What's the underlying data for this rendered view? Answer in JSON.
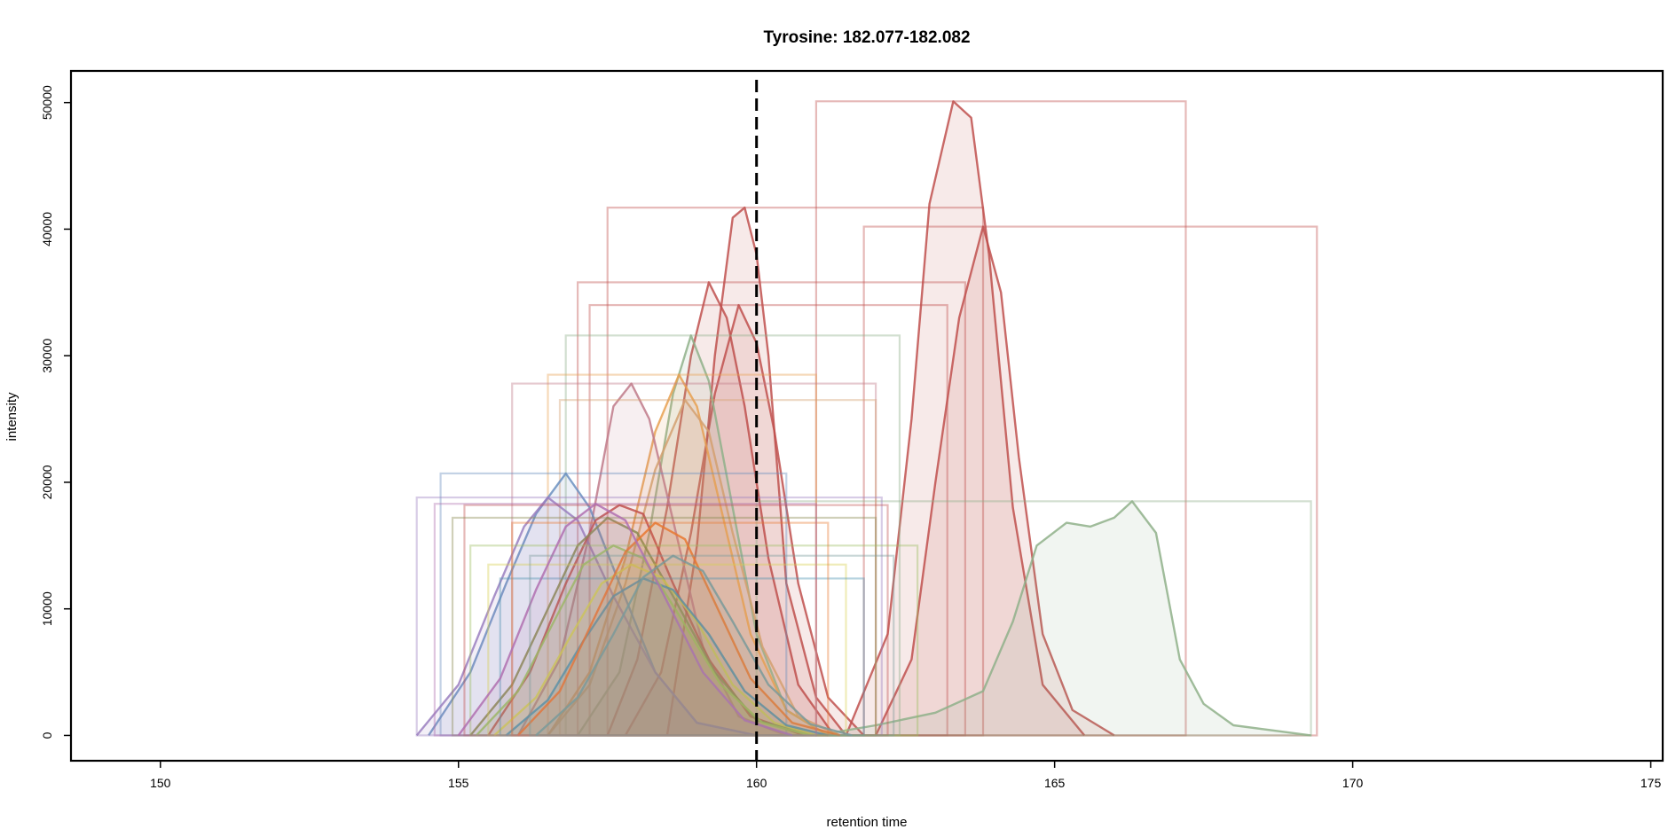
{
  "chart_data": {
    "type": "line",
    "title": "Tyrosine: 182.077-182.082",
    "xlabel": "retention time",
    "ylabel": "intensity",
    "xlim": [
      148.5,
      175.2
    ],
    "ylim": [
      -2000,
      52500
    ],
    "xticks": [
      "150",
      "155",
      "160",
      "165",
      "170",
      "175"
    ],
    "yticks": [
      "0",
      "10000",
      "20000",
      "30000",
      "40000",
      "50000"
    ],
    "grid": false,
    "legend": "none",
    "reference_line": {
      "x": 160.0,
      "style": "dashed"
    },
    "series": [
      {
        "color": "#c0504d",
        "x": [
          158.5,
          159.0,
          159.3,
          159.6,
          159.8,
          160.0,
          160.2,
          160.5,
          161.0,
          161.5
        ],
        "y": [
          0,
          15000,
          30000,
          40900,
          41700,
          38000,
          30000,
          12000,
          3000,
          0
        ],
        "box": {
          "x0": 157.5,
          "x1": 163.8,
          "top": 41700
        }
      },
      {
        "color": "#c0504d",
        "x": [
          161.5,
          162.2,
          162.6,
          162.9,
          163.3,
          163.6,
          163.9,
          164.3,
          164.8,
          165.5
        ],
        "y": [
          0,
          8000,
          25000,
          42000,
          50100,
          48800,
          38000,
          18000,
          4000,
          0
        ],
        "box": {
          "x0": 161.0,
          "x1": 167.2,
          "top": 50100
        }
      },
      {
        "color": "#c0504d",
        "x": [
          162.0,
          162.6,
          163.0,
          163.4,
          163.8,
          164.1,
          164.4,
          164.8,
          165.3,
          166.0
        ],
        "y": [
          0,
          6000,
          20000,
          33000,
          40200,
          35000,
          22000,
          8000,
          2000,
          0
        ],
        "box": {
          "x0": 161.8,
          "x1": 169.4,
          "top": 40200
        }
      },
      {
        "color": "#c0504d",
        "x": [
          157.5,
          158.0,
          158.5,
          158.9,
          159.2,
          159.5,
          159.8,
          160.2,
          160.7,
          161.3
        ],
        "y": [
          0,
          6000,
          18000,
          30000,
          35800,
          33000,
          26000,
          14000,
          4000,
          0
        ],
        "box": {
          "x0": 157.0,
          "x1": 163.5,
          "top": 35800
        }
      },
      {
        "color": "#c0504d",
        "x": [
          157.8,
          158.4,
          158.9,
          159.3,
          159.7,
          160.0,
          160.3,
          160.7,
          161.2,
          161.8
        ],
        "y": [
          0,
          5000,
          16000,
          27000,
          34000,
          31000,
          24000,
          12000,
          3000,
          0
        ],
        "box": {
          "x0": 157.2,
          "x1": 163.2,
          "top": 34000
        }
      },
      {
        "color": "#8fb08a",
        "x": [
          161.0,
          162.0,
          163.0,
          163.8,
          164.3,
          164.7,
          165.2,
          165.6,
          166.0,
          166.3,
          166.7,
          167.1,
          167.5,
          168.0,
          169.3
        ],
        "y": [
          0,
          800,
          1800,
          3500,
          9000,
          15000,
          16800,
          16500,
          17200,
          18500,
          16000,
          6000,
          2500,
          800,
          0
        ],
        "box": {
          "x0": 160.0,
          "x1": 169.3,
          "top": 18500
        }
      },
      {
        "color": "#8fb08a",
        "x": [
          157.0,
          157.7,
          158.2,
          158.6,
          158.9,
          159.2,
          159.6,
          160.0,
          160.5,
          161.2
        ],
        "y": [
          0,
          5000,
          16000,
          27000,
          31600,
          28000,
          18000,
          8000,
          2000,
          0
        ],
        "box": {
          "x0": 156.8,
          "x1": 162.4,
          "top": 31600
        }
      },
      {
        "color": "#e8a050",
        "x": [
          156.5,
          157.2,
          157.8,
          158.3,
          158.7,
          159.0,
          159.4,
          159.9,
          160.5,
          161.2
        ],
        "y": [
          0,
          5000,
          14000,
          24000,
          28500,
          26000,
          18000,
          8000,
          2000,
          0
        ],
        "box": {
          "x0": 156.5,
          "x1": 161.0,
          "top": 28500
        }
      },
      {
        "color": "#c07a8a",
        "x": [
          156.0,
          156.7,
          157.2,
          157.6,
          157.9,
          158.2,
          158.6,
          159.1,
          159.7,
          160.5
        ],
        "y": [
          0,
          6000,
          16000,
          26000,
          27800,
          25000,
          17000,
          7000,
          1500,
          0
        ],
        "box": {
          "x0": 155.9,
          "x1": 162.0,
          "top": 27800
        }
      },
      {
        "color": "#d4a070",
        "x": [
          156.5,
          157.2,
          157.8,
          158.3,
          158.8,
          159.2,
          159.6,
          160.1,
          160.7,
          161.4
        ],
        "y": [
          0,
          4000,
          12000,
          21000,
          26500,
          24000,
          16000,
          7000,
          1500,
          0
        ],
        "box": {
          "x0": 156.7,
          "x1": 162.0,
          "top": 26500
        }
      },
      {
        "color": "#6a8fbf",
        "x": [
          154.5,
          155.2,
          155.8,
          156.3,
          156.8,
          157.2,
          157.7,
          158.3,
          159.0,
          160.0
        ],
        "y": [
          0,
          5000,
          12000,
          17500,
          20700,
          18000,
          12000,
          5000,
          1000,
          0
        ],
        "box": {
          "x0": 154.7,
          "x1": 160.5,
          "top": 20700
        }
      },
      {
        "color": "#9a7fc0",
        "x": [
          154.3,
          155.0,
          155.6,
          156.1,
          156.5,
          157.0,
          157.6,
          158.3,
          159.0,
          160.0
        ],
        "y": [
          0,
          4000,
          11000,
          16500,
          18800,
          17000,
          11000,
          5000,
          1000,
          0
        ],
        "box": {
          "x0": 154.3,
          "x1": 162.1,
          "top": 18800
        }
      },
      {
        "color": "#c0504d",
        "x": [
          155.5,
          156.2,
          156.8,
          157.3,
          157.7,
          158.1,
          158.6,
          159.2,
          159.9,
          160.8
        ],
        "y": [
          0,
          5000,
          12000,
          17000,
          18200,
          17500,
          12000,
          6000,
          1500,
          0
        ],
        "box": {
          "x0": 155.1,
          "x1": 162.2,
          "top": 18200
        }
      },
      {
        "color": "#8a8a50",
        "x": [
          155.2,
          155.9,
          156.5,
          157.0,
          157.5,
          158.0,
          158.6,
          159.3,
          160.0,
          161.0
        ],
        "y": [
          0,
          4000,
          10000,
          15000,
          17200,
          16000,
          11000,
          5000,
          1200,
          0
        ],
        "box": {
          "x0": 154.9,
          "x1": 162.0,
          "top": 17200
        }
      },
      {
        "color": "#d8d050",
        "x": [
          155.6,
          156.3,
          156.9,
          157.4,
          157.9,
          158.4,
          159.0,
          159.6,
          160.3,
          161.0
        ],
        "y": [
          0,
          3000,
          8000,
          12000,
          13500,
          12500,
          9000,
          4000,
          1000,
          0
        ],
        "box": {
          "x0": 155.5,
          "x1": 161.5,
          "top": 13500
        }
      },
      {
        "color": "#4a90b0",
        "x": [
          155.8,
          156.5,
          157.1,
          157.6,
          158.1,
          158.6,
          159.2,
          159.8,
          160.5,
          161.2
        ],
        "y": [
          0,
          2800,
          7500,
          11000,
          12400,
          11500,
          8000,
          3500,
          800,
          0
        ],
        "box": {
          "x0": 155.7,
          "x1": 161.8,
          "top": 12400
        }
      },
      {
        "color": "#9bbf60",
        "x": [
          155.3,
          156.0,
          156.6,
          157.1,
          157.6,
          158.1,
          158.7,
          159.4,
          160.1,
          160.9
        ],
        "y": [
          0,
          3500,
          9000,
          13500,
          15000,
          14000,
          9500,
          4000,
          1000,
          0
        ],
        "box": {
          "x0": 155.2,
          "x1": 162.7,
          "top": 15000
        }
      },
      {
        "color": "#e87830",
        "x": [
          156.0,
          156.7,
          157.3,
          157.8,
          158.3,
          158.8,
          159.3,
          159.9,
          160.6,
          161.4
        ],
        "y": [
          0,
          3500,
          9500,
          14500,
          16800,
          15500,
          10500,
          4500,
          1000,
          0
        ],
        "box": {
          "x0": 155.9,
          "x1": 161.2,
          "top": 16800
        }
      },
      {
        "color": "#b070b0",
        "x": [
          155.0,
          155.7,
          156.3,
          156.8,
          157.3,
          157.8,
          158.4,
          159.1,
          159.8,
          160.6
        ],
        "y": [
          0,
          4500,
          11500,
          16500,
          18300,
          17000,
          11500,
          5000,
          1200,
          0
        ],
        "box": {
          "x0": 154.6,
          "x1": 161.0,
          "top": 18300
        }
      },
      {
        "color": "#7a9a9a",
        "x": [
          156.3,
          157.0,
          157.6,
          158.1,
          158.6,
          159.1,
          159.6,
          160.2,
          160.9,
          161.6
        ],
        "y": [
          0,
          3000,
          8000,
          12500,
          14200,
          13000,
          9000,
          4000,
          900,
          0
        ],
        "box": {
          "x0": 156.2,
          "x1": 162.3,
          "top": 14200
        }
      }
    ]
  }
}
